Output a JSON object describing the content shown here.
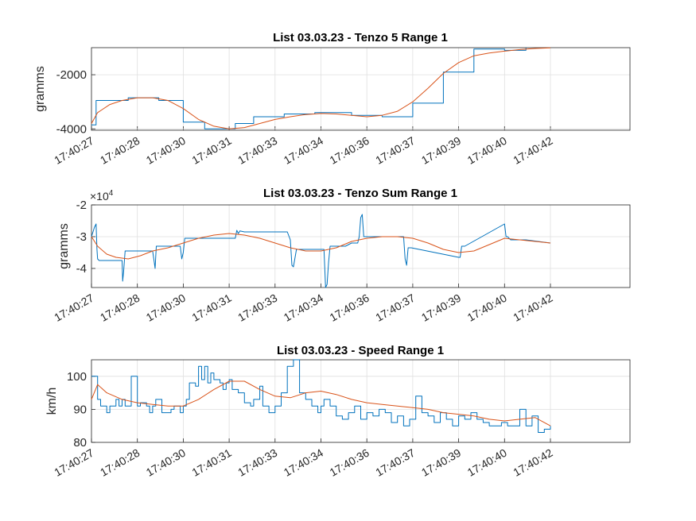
{
  "figure": {
    "background": "#ffffff"
  },
  "colors": {
    "series_raw": "#0072BD",
    "series_smooth": "#D95319",
    "axes": "#262626",
    "grid": "#dfdfdf"
  },
  "chart_data": [
    {
      "type": "line",
      "title": "List 03.03.23 - Tenzo 5 Range 1",
      "ylabel": "gramms",
      "exponent_label": "",
      "y_ticks": [
        -2000,
        -4000
      ],
      "y_tick_labels": [
        "-2000",
        "-4000"
      ],
      "ylim": [
        -4050,
        -1000
      ],
      "xlim": [
        0,
        17.6
      ],
      "x_ticks": [
        0,
        1.5,
        3,
        4.5,
        6,
        7.5,
        9,
        10.5,
        12,
        13.5,
        15
      ],
      "x_tick_labels": [
        "17:40:27",
        "17:40:28",
        "17:40:30",
        "17:40:31",
        "17:40:33",
        "17:40:34",
        "17:40:36",
        "17:40:37",
        "17:40:39",
        "17:40:40",
        "17:40:42"
      ],
      "grid": true,
      "series": [
        {
          "style": "step",
          "x": [
            0,
            0.15,
            0.5,
            1.2,
            2.2,
            3,
            3.7,
            4.7,
            5.3,
            6.3,
            7.3,
            8.5,
            9.5,
            10.5,
            11.5,
            12.5,
            13.5,
            14.2
          ],
          "y": [
            -3850,
            -2950,
            -2950,
            -2850,
            -2950,
            -3750,
            -4000,
            -3800,
            -3550,
            -3450,
            -3400,
            -3500,
            -3550,
            -3050,
            -1900,
            -1050,
            -1100,
            -1000
          ]
        },
        {
          "style": "line",
          "x": [
            0,
            0.2,
            0.6,
            1.0,
            1.5,
            2.0,
            2.5,
            3.0,
            3.5,
            4.0,
            4.5,
            5.0,
            5.5,
            6.0,
            6.5,
            7.0,
            7.5,
            8.0,
            8.5,
            9.0,
            9.5,
            10.0,
            10.5,
            11.0,
            11.5,
            12.0,
            12.5,
            13.0,
            13.5,
            14.0,
            14.5,
            15.0
          ],
          "y": [
            -3800,
            -3400,
            -3100,
            -2950,
            -2850,
            -2850,
            -2950,
            -3250,
            -3650,
            -3900,
            -4000,
            -3950,
            -3800,
            -3650,
            -3550,
            -3470,
            -3430,
            -3450,
            -3500,
            -3550,
            -3500,
            -3350,
            -3000,
            -2500,
            -1950,
            -1550,
            -1300,
            -1200,
            -1130,
            -1070,
            -1030,
            -1010
          ]
        }
      ]
    },
    {
      "type": "line",
      "title": "List 03.03.23 - Tenzo Sum Range 1",
      "ylabel": "gramms",
      "exponent_label": "×10",
      "exponent_power": "4",
      "y_ticks": [
        -2,
        -3,
        -4
      ],
      "y_tick_labels": [
        "-2",
        "-3",
        "-4"
      ],
      "ylim": [
        -4.6,
        -2
      ],
      "xlim": [
        0,
        17.6
      ],
      "x_ticks": [
        0,
        1.5,
        3,
        4.5,
        6,
        7.5,
        9,
        10.5,
        12,
        13.5,
        15
      ],
      "x_tick_labels": [
        "17:40:27",
        "17:40:28",
        "17:40:30",
        "17:40:31",
        "17:40:33",
        "17:40:34",
        "17:40:36",
        "17:40:37",
        "17:40:39",
        "17:40:40",
        "17:40:42"
      ],
      "grid": true,
      "series": [
        {
          "style": "line",
          "x": [
            0,
            0.1,
            0.15,
            0.18,
            0.2,
            0.25,
            1.0,
            1.02,
            1.05,
            1.1,
            2.0,
            2.05,
            2.08,
            2.12,
            2.25,
            2.9,
            2.95,
            3.0,
            3.05,
            3.1,
            3.5,
            4.7,
            4.75,
            4.8,
            4.85,
            5.0,
            6.4,
            6.5,
            6.55,
            6.6,
            6.7,
            7.3,
            7.6,
            7.65,
            7.7,
            7.75,
            7.8,
            8.3,
            8.5,
            8.7,
            8.75,
            8.8,
            8.85,
            8.9,
            9.4,
            9.5,
            9.55,
            9.6,
            10.2,
            10.25,
            10.3,
            10.35,
            10.45,
            12.0,
            12.05,
            12.1,
            12.2,
            13.5,
            13.55,
            13.6,
            13.7,
            14.2,
            15.0
          ],
          "y": [
            -3.0,
            -2.7,
            -2.6,
            -3.4,
            -3.7,
            -3.75,
            -3.75,
            -4.4,
            -4.1,
            -3.45,
            -3.45,
            -3.8,
            -4.0,
            -3.3,
            -3.3,
            -3.3,
            -3.7,
            -3.5,
            -3.05,
            -3.05,
            -3.05,
            -3.05,
            -2.8,
            -2.9,
            -2.82,
            -2.85,
            -2.85,
            -3.1,
            -3.9,
            -3.95,
            -3.4,
            -3.4,
            -3.4,
            -4.6,
            -4.5,
            -3.8,
            -3.3,
            -3.3,
            -3.2,
            -3.2,
            -3.0,
            -2.4,
            -2.3,
            -3.0,
            -3.0,
            -3.0,
            -3.0,
            -3.0,
            -3.0,
            -3.7,
            -3.9,
            -3.35,
            -3.35,
            -3.65,
            -3.65,
            -3.3,
            -3.3,
            -2.6,
            -3.0,
            -3.0,
            -3.1,
            -3.1,
            -3.2
          ]
        },
        {
          "style": "line",
          "x": [
            0,
            0.2,
            0.5,
            0.8,
            1.2,
            1.6,
            2.0,
            2.5,
            3.0,
            3.5,
            4.0,
            4.5,
            5.0,
            5.5,
            6.0,
            6.5,
            7.0,
            7.5,
            8.0,
            8.5,
            9.0,
            9.5,
            10.0,
            10.5,
            11.0,
            11.5,
            12.0,
            12.5,
            13.0,
            13.5,
            14.0,
            14.5,
            15.0
          ],
          "y": [
            -3.0,
            -3.3,
            -3.55,
            -3.65,
            -3.7,
            -3.6,
            -3.45,
            -3.35,
            -3.2,
            -3.05,
            -2.95,
            -2.9,
            -2.95,
            -3.05,
            -3.2,
            -3.35,
            -3.45,
            -3.45,
            -3.35,
            -3.15,
            -3.05,
            -3.0,
            -3.0,
            -3.05,
            -3.2,
            -3.4,
            -3.5,
            -3.45,
            -3.25,
            -3.05,
            -3.1,
            -3.15,
            -3.2
          ]
        }
      ]
    },
    {
      "type": "line",
      "title": "List 03.03.23 - Speed Range 1",
      "ylabel": "km/h",
      "exponent_label": "",
      "y_ticks": [
        100,
        90,
        80
      ],
      "y_tick_labels": [
        "100",
        "90",
        "80"
      ],
      "ylim": [
        80,
        105
      ],
      "xlim": [
        0,
        17.6
      ],
      "x_ticks": [
        0,
        1.5,
        3,
        4.5,
        6,
        7.5,
        9,
        10.5,
        12,
        13.5,
        15
      ],
      "x_tick_labels": [
        "17:40:27",
        "17:40:28",
        "17:40:30",
        "17:40:31",
        "17:40:33",
        "17:40:34",
        "17:40:36",
        "17:40:37",
        "17:40:39",
        "17:40:40",
        "17:40:42"
      ],
      "grid": true,
      "series": [
        {
          "style": "step",
          "x": [
            0,
            0.2,
            0.3,
            0.5,
            0.6,
            0.8,
            0.9,
            1.0,
            1.1,
            1.2,
            1.3,
            1.5,
            1.6,
            1.8,
            1.9,
            2.0,
            2.1,
            2.3,
            2.6,
            2.7,
            2.9,
            3.0,
            3.1,
            3.2,
            3.4,
            3.5,
            3.6,
            3.7,
            3.8,
            3.9,
            4.0,
            4.2,
            4.3,
            4.4,
            4.5,
            4.6,
            4.8,
            5.0,
            5.2,
            5.3,
            5.5,
            5.6,
            5.8,
            6.0,
            6.2,
            6.4,
            6.6,
            6.8,
            7.0,
            7.2,
            7.4,
            7.5,
            7.6,
            7.8,
            8.0,
            8.2,
            8.4,
            8.6,
            8.8,
            9.0,
            9.2,
            9.4,
            9.6,
            9.8,
            10.0,
            10.2,
            10.4,
            10.6,
            10.8,
            11.0,
            11.2,
            11.4,
            11.6,
            11.8,
            12.0,
            12.2,
            12.4,
            12.6,
            12.8,
            13.0,
            13.2,
            13.4,
            13.6,
            13.8,
            14.0,
            14.2,
            14.4,
            14.6,
            14.8,
            15.0
          ],
          "y": [
            100,
            93,
            91,
            89,
            91,
            93,
            91,
            93,
            91,
            91,
            100,
            91,
            92,
            91,
            89,
            91,
            93,
            89,
            90,
            91,
            89,
            91,
            93,
            98,
            97,
            103,
            99,
            103,
            98,
            101,
            99,
            98,
            96,
            98,
            99,
            96,
            95,
            92,
            91,
            93,
            97,
            91,
            89,
            91,
            95,
            103,
            105,
            95,
            93,
            91,
            89,
            91,
            93,
            91,
            88,
            87,
            89,
            91,
            87,
            89,
            88,
            90,
            89,
            86,
            88,
            85,
            87,
            94,
            89,
            88,
            86,
            89,
            87,
            85,
            88,
            87,
            89,
            87,
            86,
            85,
            85,
            86,
            85,
            85,
            90,
            85,
            88,
            83,
            84,
            85
          ]
        },
        {
          "style": "line",
          "x": [
            0,
            0.2,
            0.5,
            1.0,
            1.5,
            2.0,
            2.5,
            3.0,
            3.5,
            4.0,
            4.5,
            5.0,
            5.5,
            6.0,
            6.5,
            7.0,
            7.5,
            8.0,
            8.5,
            9.0,
            9.5,
            10.0,
            10.5,
            11.0,
            11.5,
            12.0,
            12.5,
            13.0,
            13.5,
            14.0,
            14.5,
            15.0
          ],
          "y": [
            93,
            97.5,
            95,
            93,
            92,
            91.5,
            91,
            91,
            93,
            96,
            98.5,
            98.5,
            96,
            94,
            93.5,
            95,
            95.5,
            94.5,
            93,
            92,
            91.5,
            91,
            90.5,
            90,
            89,
            88.5,
            88,
            87,
            86.5,
            87,
            87.5,
            85
          ]
        }
      ]
    }
  ]
}
